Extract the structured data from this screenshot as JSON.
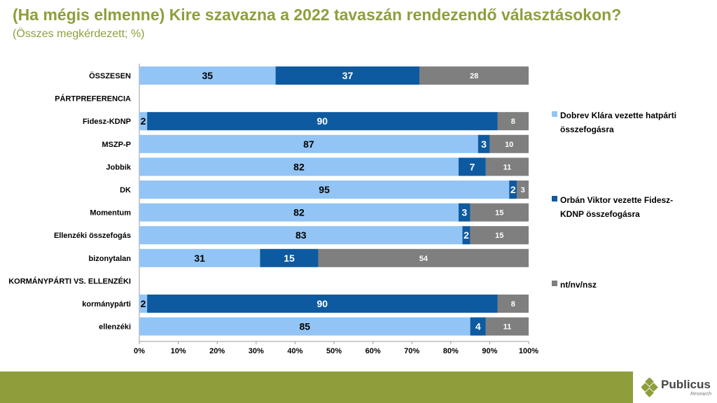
{
  "chart_data": {
    "type": "bar",
    "orientation": "horizontal",
    "stacked": true,
    "title": "(Ha mégis elmenne) Kire szavazna a 2022 tavaszán rendezendő választásokon?",
    "subtitle": "(Összes megkérdezett; %)",
    "xlim": [
      0,
      100
    ],
    "x_ticks": [
      "0%",
      "10%",
      "20%",
      "30%",
      "40%",
      "50%",
      "60%",
      "70%",
      "80%",
      "90%",
      "100%"
    ],
    "x_tick_values": [
      0,
      10,
      20,
      30,
      40,
      50,
      60,
      70,
      80,
      90,
      100
    ],
    "categories": [
      "ÖSSZESEN",
      "PÁRTPREFERENCIA",
      "Fidesz-KDNP",
      "MSZP-P",
      "Jobbik",
      "DK",
      "Momentum",
      "Ellenzéki összefogás",
      "bizonytalan",
      "KORMÁNYPÁRTI VS. ELLENZÉKI",
      "kormánypárti",
      "ellenzéki"
    ],
    "series": [
      {
        "name": "Dobrev Klára vezette hatpárti összefogásra",
        "color": "#92c5f5",
        "values": [
          35,
          null,
          2,
          87,
          82,
          95,
          82,
          83,
          31,
          null,
          2,
          85
        ]
      },
      {
        "name": "Orbán Viktor vezette Fidesz-KDNP összefogásra",
        "color": "#0d5aa0",
        "values": [
          37,
          null,
          90,
          3,
          7,
          2,
          3,
          2,
          15,
          null,
          90,
          4
        ]
      },
      {
        "name": "nt/nv/nsz",
        "color": "#7f7f7f",
        "values": [
          28,
          null,
          8,
          10,
          11,
          3,
          15,
          15,
          54,
          null,
          8,
          11
        ]
      }
    ]
  },
  "legend": {
    "items": [
      {
        "label": "Dobrev Klára vezette hatpárti összefogásra",
        "color": "#92c5f5"
      },
      {
        "label": "Orbán Viktor vezette Fidesz-KDNP összefogásra",
        "color": "#0d5aa0"
      },
      {
        "label": "nt/nv/nsz",
        "color": "#7f7f7f"
      }
    ]
  },
  "logo": {
    "name": "Publicus",
    "sub": "Research"
  }
}
